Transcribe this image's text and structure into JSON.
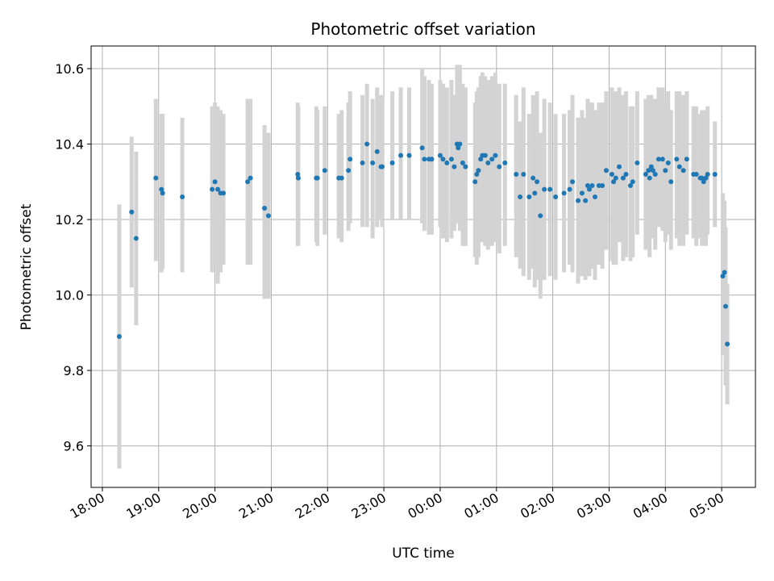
{
  "chart_data": {
    "type": "scatter",
    "title": "Photometric offset variation",
    "xlabel": "UTC time",
    "ylabel": "Photometric offset",
    "grid": true,
    "x_tick_labels": [
      "18:00",
      "19:00",
      "20:00",
      "21:00",
      "22:00",
      "23:00",
      "00:00",
      "01:00",
      "02:00",
      "03:00",
      "04:00",
      "05:00"
    ],
    "y_ticks": [
      9.6,
      9.8,
      10.0,
      10.2,
      10.4,
      10.6
    ],
    "y_tick_labels": [
      "9.6",
      "9.8",
      "10.0",
      "10.2",
      "10.4",
      "10.6"
    ],
    "x_range_hours_since_18": [
      -0.2,
      11.6
    ],
    "ylim": [
      9.49,
      10.66
    ],
    "colors": {
      "point": "#1f77b4",
      "errorbar": "#d3d3d3",
      "grid": "#b0b0b0"
    },
    "x_hours_since_18": [
      0.3,
      0.52,
      0.6,
      0.95,
      1.05,
      1.07,
      1.42,
      1.95,
      2.0,
      2.05,
      2.1,
      2.15,
      2.58,
      2.63,
      2.88,
      2.95,
      3.47,
      3.48,
      3.8,
      3.82,
      3.95,
      4.2,
      4.25,
      4.37,
      4.4,
      4.62,
      4.7,
      4.8,
      4.88,
      4.95,
      4.97,
      5.15,
      5.3,
      5.45,
      5.68,
      5.72,
      5.8,
      5.85,
      6.0,
      6.05,
      6.12,
      6.2,
      6.25,
      6.3,
      6.32,
      6.35,
      6.4,
      6.45,
      6.62,
      6.65,
      6.68,
      6.72,
      6.75,
      6.8,
      6.85,
      6.92,
      6.98,
      7.05,
      7.15,
      7.35,
      7.42,
      7.48,
      7.58,
      7.65,
      7.68,
      7.72,
      7.78,
      7.85,
      7.95,
      8.05,
      8.2,
      8.3,
      8.35,
      8.45,
      8.52,
      8.58,
      8.62,
      8.65,
      8.7,
      8.75,
      8.82,
      8.88,
      8.95,
      9.05,
      9.08,
      9.12,
      9.18,
      9.25,
      9.3,
      9.38,
      9.42,
      9.5,
      9.65,
      9.7,
      9.72,
      9.75,
      9.78,
      9.82,
      9.88,
      9.95,
      10.0,
      10.05,
      10.1,
      10.2,
      10.25,
      10.32,
      10.38,
      10.5,
      10.55,
      10.62,
      10.65,
      10.68,
      10.72,
      10.75,
      10.88,
      11.02,
      11.05,
      11.07,
      11.1
    ],
    "offsets": [
      9.89,
      10.22,
      10.15,
      10.31,
      10.28,
      10.27,
      10.26,
      10.28,
      10.3,
      10.28,
      10.27,
      10.27,
      10.3,
      10.31,
      10.23,
      10.21,
      10.32,
      10.31,
      10.31,
      10.31,
      10.33,
      10.31,
      10.31,
      10.33,
      10.36,
      10.35,
      10.4,
      10.35,
      10.38,
      10.34,
      10.34,
      10.35,
      10.37,
      10.37,
      10.39,
      10.36,
      10.36,
      10.36,
      10.37,
      10.36,
      10.35,
      10.36,
      10.34,
      10.4,
      10.39,
      10.4,
      10.35,
      10.34,
      10.3,
      10.32,
      10.33,
      10.36,
      10.37,
      10.37,
      10.35,
      10.36,
      10.37,
      10.34,
      10.35,
      10.32,
      10.26,
      10.32,
      10.26,
      10.31,
      10.27,
      10.3,
      10.21,
      10.28,
      10.28,
      10.26,
      10.27,
      10.28,
      10.3,
      10.25,
      10.27,
      10.25,
      10.29,
      10.28,
      10.29,
      10.26,
      10.29,
      10.29,
      10.33,
      10.32,
      10.3,
      10.31,
      10.34,
      10.31,
      10.32,
      10.29,
      10.3,
      10.35,
      10.32,
      10.33,
      10.31,
      10.34,
      10.33,
      10.32,
      10.36,
      10.36,
      10.33,
      10.35,
      10.3,
      10.36,
      10.34,
      10.33,
      10.36,
      10.32,
      10.32,
      10.31,
      10.31,
      10.3,
      10.31,
      10.32,
      10.32,
      10.05,
      10.06,
      9.97,
      9.87
    ],
    "error_lower": [
      9.54,
      10.02,
      9.92,
      10.09,
      10.06,
      10.07,
      10.06,
      10.06,
      10.08,
      10.03,
      10.06,
      10.08,
      10.08,
      10.08,
      9.99,
      9.99,
      10.13,
      10.13,
      10.14,
      10.13,
      10.16,
      10.15,
      10.14,
      10.17,
      10.19,
      10.18,
      10.18,
      10.15,
      10.18,
      10.2,
      10.18,
      10.2,
      10.2,
      10.2,
      10.19,
      10.17,
      10.16,
      10.16,
      10.18,
      10.15,
      10.14,
      10.15,
      10.17,
      10.2,
      10.19,
      10.17,
      10.13,
      10.13,
      10.1,
      10.08,
      10.1,
      10.14,
      10.14,
      10.13,
      10.12,
      10.13,
      10.14,
      10.11,
      10.13,
      10.1,
      10.07,
      10.05,
      10.04,
      10.07,
      10.02,
      10.04,
      9.99,
      10.04,
      10.05,
      10.04,
      10.06,
      10.08,
      10.06,
      10.03,
      10.05,
      10.04,
      10.07,
      10.05,
      10.07,
      10.04,
      10.08,
      10.07,
      10.12,
      10.09,
      10.08,
      10.08,
      10.14,
      10.09,
      10.1,
      10.09,
      10.1,
      10.16,
      10.12,
      10.13,
      10.1,
      10.16,
      10.15,
      10.12,
      10.18,
      10.17,
      10.14,
      10.16,
      10.12,
      10.15,
      10.13,
      10.13,
      10.16,
      10.15,
      10.13,
      10.15,
      10.13,
      10.15,
      10.13,
      10.16,
      10.18,
      9.84,
      9.86,
      9.76,
      9.71
    ],
    "error_upper": [
      10.24,
      10.42,
      10.38,
      10.52,
      10.48,
      10.48,
      10.47,
      10.5,
      10.51,
      10.5,
      10.49,
      10.48,
      10.52,
      10.52,
      10.45,
      10.43,
      10.51,
      10.5,
      10.5,
      10.49,
      10.5,
      10.48,
      10.49,
      10.51,
      10.54,
      10.53,
      10.56,
      10.52,
      10.55,
      10.53,
      10.52,
      10.54,
      10.55,
      10.55,
      10.6,
      10.58,
      10.57,
      10.56,
      10.57,
      10.56,
      10.55,
      10.57,
      10.53,
      10.61,
      10.6,
      10.61,
      10.56,
      10.55,
      10.51,
      10.54,
      10.55,
      10.58,
      10.59,
      10.58,
      10.57,
      10.58,
      10.59,
      10.56,
      10.56,
      10.53,
      10.46,
      10.55,
      10.48,
      10.53,
      10.5,
      10.54,
      10.43,
      10.52,
      10.51,
      10.48,
      10.48,
      10.49,
      10.53,
      10.47,
      10.49,
      10.47,
      10.52,
      10.51,
      10.51,
      10.49,
      10.51,
      10.51,
      10.54,
      10.55,
      10.52,
      10.54,
      10.55,
      10.53,
      10.54,
      10.5,
      10.5,
      10.54,
      10.52,
      10.53,
      10.51,
      10.53,
      10.52,
      10.52,
      10.55,
      10.55,
      10.52,
      10.54,
      10.49,
      10.54,
      10.54,
      10.53,
      10.54,
      10.5,
      10.5,
      10.48,
      10.49,
      10.48,
      10.49,
      10.5,
      10.46,
      10.27,
      10.25,
      10.18,
      10.03
    ]
  }
}
